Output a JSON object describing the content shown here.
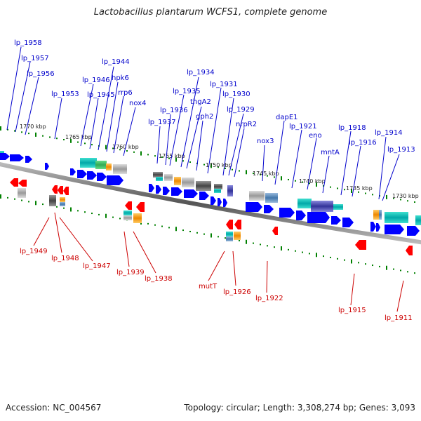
{
  "title": "Lactobacillus plantarum WCFS1, complete genome",
  "footer": {
    "accession": "Accession: NC_004567",
    "summary": "Topology: circular; Length: 3,308,274 bp; Genes: 3,093"
  },
  "scale_labels": [
    "1770 kbp",
    "1765 kbp",
    "1760 kbp",
    "1755 kbp",
    "1750 kbp",
    "1745 kbp",
    "1740 kbp",
    "1735 kbp",
    "1730 kbp"
  ],
  "top_genes": [
    "lp_1958",
    "lp_1957",
    "lp_1956",
    "lp_1953",
    "lp_1946",
    "lp_1945",
    "lp_1944",
    "hpk6",
    "rrp6",
    "nox4",
    "lp_1937",
    "lp_1936",
    "lp_1935",
    "lp_1934",
    "thgA2",
    "gph2",
    "lp_1931",
    "lp_1930",
    "lp_1929",
    "nrpR2",
    "nox3",
    "dapE1",
    "lp_1921",
    "eno",
    "mntA",
    "lp_1918",
    "lp_1916",
    "lp_1914",
    "lp_1913"
  ],
  "bottom_genes": [
    "lp_1949",
    "lp_1948",
    "lp_1947",
    "lp_1939",
    "lp_1938",
    "mutT",
    "lp_1926",
    "lp_1922",
    "lp_1915",
    "lp_1911"
  ],
  "colors": {
    "top_label": "#0000cc",
    "bottom_label": "#cc0000",
    "forward_arrow": "#0000ff",
    "reverse_arrow": "#ff0000",
    "scale_tick": "#008000",
    "backbone": "#777777"
  }
}
